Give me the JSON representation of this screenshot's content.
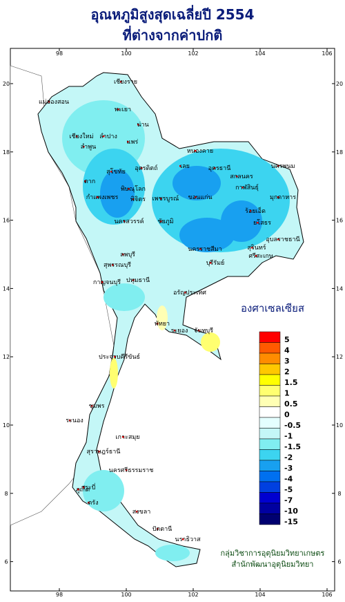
{
  "title": "อุณหภูมิสูงสุดเฉลี่ยปี  2554",
  "subtitle": "ที่ต่างจากค่าปกติ",
  "map": {
    "lon_ticks": [
      98,
      100,
      102,
      104,
      106
    ],
    "lat_ticks": [
      20,
      18,
      16,
      14,
      12,
      10,
      8,
      6
    ],
    "places": [
      "เชียงราย",
      "แม่ฮ่องสอน",
      "เชียงใหม่",
      "ลำพูน",
      "ลำปาง",
      "พะเยา",
      "น่าน",
      "แพร่",
      "อุตรดิตถ์",
      "ตาก",
      "สุโขทัย",
      "พิษณุโลก",
      "กำแพงเพชร",
      "พิจิตร",
      "เพชรบูรณ์",
      "นครสวรรค์",
      "เลย",
      "หนองคาย",
      "อุดรธานี",
      "สกลนคร",
      "นครพนม",
      "กาฬสินธุ์",
      "มุกดาหาร",
      "ขอนแก่น",
      "ชัยภูมิ",
      "ร้อยเอ็ด",
      "ยโสธร",
      "อุบลราชธานี",
      "นครราชสีมา",
      "บุรีรัมย์",
      "สุรินทร์",
      "ศรีสะเกษ",
      "ลพบุรี",
      "สุพรรณบุรี",
      "กาญจนบุรี",
      "ปทุมธานี",
      "อรัญประเทศ",
      "พัทยา",
      "ระยอง",
      "จันทบุรี",
      "ประจวบคีรีขันธ์",
      "ชุมพร",
      "ระนอง",
      "เกาะสมุย",
      "สุราษฎร์ธานี",
      "นครศรีธรรมราช",
      "ภูเก็ต",
      "กระบี่",
      "ตรัง",
      "สงขลา",
      "ปัตตานี",
      "นราธิวาส"
    ]
  },
  "legend": {
    "title": "องศาเซลเซียส",
    "items": [
      {
        "label": "5",
        "color": "#ff0000"
      },
      {
        "label": "4",
        "color": "#ff5a00"
      },
      {
        "label": "3",
        "color": "#ff8c00"
      },
      {
        "label": "2",
        "color": "#ffc800"
      },
      {
        "label": "1.5",
        "color": "#ffff00"
      },
      {
        "label": "1",
        "color": "#ffff70"
      },
      {
        "label": "0.5",
        "color": "#ffffb4"
      },
      {
        "label": "0",
        "color": "#ffffff"
      },
      {
        "label": "-0.5",
        "color": "#e4ffff"
      },
      {
        "label": "-1",
        "color": "#c4f7f7"
      },
      {
        "label": "-1.5",
        "color": "#80eef0"
      },
      {
        "label": "-2",
        "color": "#3cd4f0"
      },
      {
        "label": "-3",
        "color": "#18a0f0"
      },
      {
        "label": "-4",
        "color": "#0070f0"
      },
      {
        "label": "-5",
        "color": "#0040e0"
      },
      {
        "label": "-7",
        "color": "#0000d0"
      },
      {
        "label": "-10",
        "color": "#0000a0"
      },
      {
        "label": "-15",
        "color": "#000070"
      }
    ]
  },
  "credits": [
    "กลุ่มวิชาการอุตุนิยมวิทยาเกษตร",
    "สำนักพัฒนาอุตุนิยมวิทยา"
  ]
}
